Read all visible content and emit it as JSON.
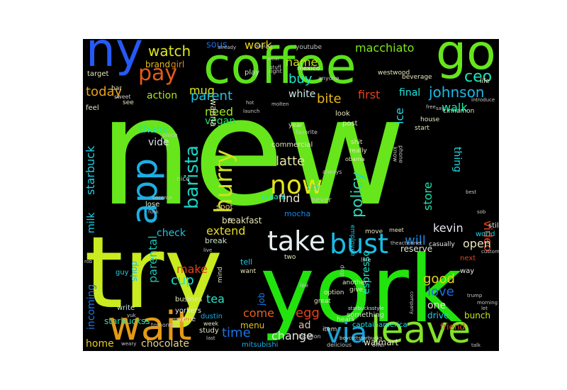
{
  "background_color": "#000000",
  "words": [
    {
      "text": "new",
      "color": "#66e61b"
    },
    {
      "text": "try",
      "color": "#c9eb1f"
    },
    {
      "text": "york",
      "color": "#22e30e"
    },
    {
      "text": "coffee",
      "color": "#5ce21b"
    },
    {
      "text": "go",
      "color": "#66e61b"
    },
    {
      "text": "ny",
      "color": "#2659f5"
    },
    {
      "text": "wait",
      "color": "#e59a13"
    },
    {
      "text": "leave",
      "color": "#83e22b"
    },
    {
      "text": "app",
      "color": "#1ab0e4"
    },
    {
      "text": "take",
      "color": "#e6eef0"
    },
    {
      "text": "bust",
      "color": "#1bbce6"
    },
    {
      "text": "via",
      "color": "#1ba3d8"
    },
    {
      "text": "now",
      "color": "#e6e41b"
    },
    {
      "text": "hurry",
      "color": "#cfe11d"
    },
    {
      "text": "barista",
      "color": "#1bd2c4"
    },
    {
      "text": "pay",
      "color": "#e65a1b"
    },
    {
      "text": "policy",
      "color": "#2ad9b6"
    },
    {
      "text": "johnson",
      "color": "#1bb8e6"
    },
    {
      "text": "watch",
      "color": "#dce61b"
    },
    {
      "text": "macchiato",
      "color": "#7ee61b"
    },
    {
      "text": "ceo",
      "color": "#1be6b8"
    },
    {
      "text": "mug",
      "color": "#dce61b"
    },
    {
      "text": "parent",
      "color": "#1bc6e6"
    },
    {
      "text": "today",
      "color": "#e6a21b"
    },
    {
      "text": "name",
      "color": "#c7e61b"
    },
    {
      "text": "buy",
      "color": "#1be6cf"
    },
    {
      "text": "work",
      "color": "#e6d21b"
    },
    {
      "text": "brand",
      "color": "#e6be1b"
    },
    {
      "text": "girl",
      "color": "#e6881b"
    },
    {
      "text": "action",
      "color": "#b0e61b"
    },
    {
      "text": "sous",
      "color": "#1b6ee6"
    },
    {
      "text": "white",
      "color": "#d0e6e6"
    },
    {
      "text": "bite",
      "color": "#e6b81b"
    },
    {
      "text": "first",
      "color": "#e6421b"
    },
    {
      "text": "final",
      "color": "#1be6dc"
    },
    {
      "text": "ice",
      "color": "#1bd6e6"
    },
    {
      "text": "walk",
      "color": "#1be6a2"
    },
    {
      "text": "need",
      "color": "#a4e61b"
    },
    {
      "text": "vegan",
      "color": "#1be666"
    },
    {
      "text": "cup",
      "color": "#1be6d2"
    },
    {
      "text": "latte",
      "color": "#e6e6a4"
    },
    {
      "text": "find",
      "color": "#e6e6d0"
    },
    {
      "text": "store",
      "color": "#1be6b0"
    },
    {
      "text": "thing",
      "color": "#1bd8e6"
    },
    {
      "text": "video",
      "color": "#e6421b"
    },
    {
      "text": "kevin",
      "color": "#e6e6f0"
    },
    {
      "text": "will",
      "color": "#1b88e6"
    },
    {
      "text": "open",
      "color": "#e6e6c0"
    },
    {
      "text": "reserve",
      "color": "#e6e6d8"
    },
    {
      "text": "thank",
      "color": "#1be6b2"
    },
    {
      "text": "vide",
      "color": "#d8e6e6"
    },
    {
      "text": "starbuck",
      "color": "#1bcfe6"
    },
    {
      "text": "milk",
      "color": "#1bd0e6"
    },
    {
      "text": "parental",
      "color": "#1bc0b0"
    },
    {
      "text": "extend",
      "color": "#e6dc1b"
    },
    {
      "text": "check",
      "color": "#1bc6e6"
    },
    {
      "text": "make",
      "color": "#e6421b"
    },
    {
      "text": "tea",
      "color": "#2ae6c6"
    },
    {
      "text": "shop",
      "color": "#1bc0e6"
    },
    {
      "text": "incoming",
      "color": "#1b7ae6"
    },
    {
      "text": "home",
      "color": "#e6cc1b"
    },
    {
      "text": "chocolate",
      "color": "#e6d28e"
    },
    {
      "text": "time",
      "color": "#1b74e6"
    },
    {
      "text": "come",
      "color": "#e6611b"
    },
    {
      "text": "menu",
      "color": "#e6c01b"
    },
    {
      "text": "egg",
      "color": "#e6421b"
    },
    {
      "text": "change",
      "color": "#e6e6e0"
    },
    {
      "text": "ad",
      "color": "#e6c0a0"
    },
    {
      "text": "good",
      "color": "#e6d61b"
    },
    {
      "text": "love",
      "color": "#1b6ee6"
    },
    {
      "text": "one",
      "color": "#e6e6d0"
    },
    {
      "text": "espresso",
      "color": "#1be6c6"
    },
    {
      "text": "job",
      "color": "#1b7ae6"
    },
    {
      "text": "breakfast",
      "color": "#e6e6b8"
    },
    {
      "text": "drive",
      "color": "#1bd0e6"
    },
    {
      "text": "bunch",
      "color": "#c6e61b"
    },
    {
      "text": "friend",
      "color": "#e6421b"
    },
    {
      "text": "walmart",
      "color": "#e6e6c0"
    },
    {
      "text": "mitsubishi",
      "color": "#1bb0e6"
    },
    {
      "text": "captainamerica",
      "color": "#1be6e0"
    },
    {
      "text": "starbuckss",
      "color": "#1be6b0"
    },
    {
      "text": "yorkers",
      "color": "#e6e6e6"
    },
    {
      "text": "dustin",
      "color": "#1bb0e6"
    },
    {
      "text": "hire",
      "color": "#e6e6e6"
    },
    {
      "text": "study",
      "color": "#e6e6c0"
    },
    {
      "text": "busines",
      "color": "#e6e6c0"
    },
    {
      "text": "write",
      "color": "#c6e6e6"
    },
    {
      "text": "guy",
      "color": "#1bd0e6"
    },
    {
      "text": "lose",
      "color": "#e6e6c0"
    },
    {
      "text": "spot",
      "color": "#e6c06e"
    },
    {
      "text": "tell",
      "color": "#1bd0e6"
    },
    {
      "text": "break",
      "color": "#c6e6c0"
    },
    {
      "text": "cream",
      "color": "#1be6c6"
    },
    {
      "text": "mocha",
      "color": "#1b88e6"
    },
    {
      "text": "city",
      "color": "#1bd0e6"
    },
    {
      "text": "never",
      "color": "#c6c6c6"
    },
    {
      "text": "employee",
      "color": "#1bd0e6"
    },
    {
      "text": "something",
      "color": "#c6e6c0"
    },
    {
      "text": "another",
      "color": "#e6e6c0"
    },
    {
      "text": "give",
      "color": "#e6e6c0"
    },
    {
      "text": "option",
      "color": "#e6e6c0"
    },
    {
      "text": "great",
      "color": "#e6e6c0"
    },
    {
      "text": "hears",
      "color": "#e6e6c0"
    },
    {
      "text": "item",
      "color": "#e6e6c0"
    },
    {
      "text": "location",
      "color": "#c6c6c6"
    },
    {
      "text": "delicious",
      "color": "#c6c6c6"
    },
    {
      "text": "offer",
      "color": "#c6c6c6"
    },
    {
      "text": "casually",
      "color": "#e6e6e6"
    },
    {
      "text": "world",
      "color": "#1bd0e6"
    },
    {
      "text": "still",
      "color": "#e6e6e6"
    },
    {
      "text": "next",
      "color": "#e6421b"
    },
    {
      "text": "way",
      "color": "#e6e6e6"
    },
    {
      "text": "move",
      "color": "#e6e6c0"
    },
    {
      "text": "meet",
      "color": "#e6e6c0"
    },
    {
      "text": "two",
      "color": "#e6e6c0"
    },
    {
      "text": "want",
      "color": "#e6e6c0"
    },
    {
      "text": "mind",
      "color": "#e6e6c0"
    },
    {
      "text": "week",
      "color": "#e6e6c0"
    },
    {
      "text": "may",
      "color": "#e6e6c0"
    },
    {
      "text": "tomorrow",
      "color": "#c6c6c6"
    },
    {
      "text": "sweet",
      "color": "#c6c6c6"
    },
    {
      "text": "target",
      "color": "#e6e6c0"
    },
    {
      "text": "feel",
      "color": "#e6e6c0"
    },
    {
      "text": "bar",
      "color": "#e6e6c0"
    },
    {
      "text": "see",
      "color": "#e6e6c0"
    },
    {
      "text": "play",
      "color": "#c6e6c0"
    },
    {
      "text": "right",
      "color": "#c6c6c6"
    },
    {
      "text": "mexico",
      "color": "#e6e6c0"
    },
    {
      "text": "anyone",
      "color": "#c6c6c6"
    },
    {
      "text": "youtube",
      "color": "#c6c6c6"
    },
    {
      "text": "westwood",
      "color": "#e6e6c0"
    },
    {
      "text": "beverage",
      "color": "#e6e6c0"
    },
    {
      "text": "life",
      "color": "#e6e6c0"
    },
    {
      "text": "introduce",
      "color": "#c6c6c6"
    },
    {
      "text": "cinnamon",
      "color": "#e6e6c0"
    },
    {
      "text": "look",
      "color": "#e6e6c0"
    },
    {
      "text": "post",
      "color": "#e6e6c0"
    },
    {
      "text": "shit",
      "color": "#e6e6c0"
    },
    {
      "text": "know",
      "color": "#c6c6c6"
    },
    {
      "text": "phone",
      "color": "#c6c6c6"
    },
    {
      "text": "start",
      "color": "#e6e6c0"
    },
    {
      "text": "house",
      "color": "#e6e6c0"
    },
    {
      "text": "year",
      "color": "#e6e6c0"
    },
    {
      "text": "favorite",
      "color": "#c6c6c6"
    },
    {
      "text": "commercial",
      "color": "#e6e6c0"
    },
    {
      "text": "really",
      "color": "#e6e6c0"
    },
    {
      "text": "obama",
      "color": "#e6e6c0"
    },
    {
      "text": "always",
      "color": "#c6c6c6"
    },
    {
      "text": "nice",
      "color": "#c6c6c6"
    },
    {
      "text": "wanna",
      "color": "#e6e6c0"
    },
    {
      "text": "re",
      "color": "#e6e6c0"
    },
    {
      "text": "line",
      "color": "#c6c6c6"
    },
    {
      "text": "stop",
      "color": "#c6c6c6"
    },
    {
      "text": "place",
      "color": "#c6c6c6"
    },
    {
      "text": "hot",
      "color": "#c6c6c6"
    },
    {
      "text": "launch",
      "color": "#c6c6c6"
    },
    {
      "text": "molten",
      "color": "#c6c6c6"
    },
    {
      "text": "already",
      "color": "#c6c6c6"
    },
    {
      "text": "wear",
      "color": "#c6c6c6"
    },
    {
      "text": "stuff",
      "color": "#c6c6c6"
    },
    {
      "text": "free",
      "color": "#c6c6c6"
    },
    {
      "text": "say",
      "color": "#c6c6c6"
    },
    {
      "text": "live",
      "color": "#c6c6c6"
    },
    {
      "text": "coconut",
      "color": "#c6c6c6"
    },
    {
      "text": "fuck",
      "color": "#c6c6c6"
    },
    {
      "text": "best",
      "color": "#c6c6c6"
    },
    {
      "text": "sob",
      "color": "#c6c6c6"
    },
    {
      "text": "customer",
      "color": "#c6c6c6"
    },
    {
      "text": "morning",
      "color": "#c6c6c6"
    },
    {
      "text": "trump",
      "color": "#c6c6c6"
    },
    {
      "text": "let",
      "color": "#c6c6c6"
    },
    {
      "text": "talk",
      "color": "#c6c6c6"
    },
    {
      "text": "sakura",
      "color": "#c6c6c6"
    },
    {
      "text": "starbucksstyle",
      "color": "#c6e6e6"
    },
    {
      "text": "boycottstarbucks",
      "color": "#c6e6e6"
    },
    {
      "text": "theactionnet",
      "color": "#c6c6c6"
    },
    {
      "text": "company",
      "color": "#c6c6c6"
    },
    {
      "text": "rob",
      "color": "#c6c6c6"
    },
    {
      "text": "yuk",
      "color": "#c6c6c6"
    },
    {
      "text": "weary",
      "color": "#c6c6c6"
    },
    {
      "text": "last",
      "color": "#c6c6c6"
    },
    {
      "text": "lee",
      "color": "#c6c6c6"
    }
  ]
}
